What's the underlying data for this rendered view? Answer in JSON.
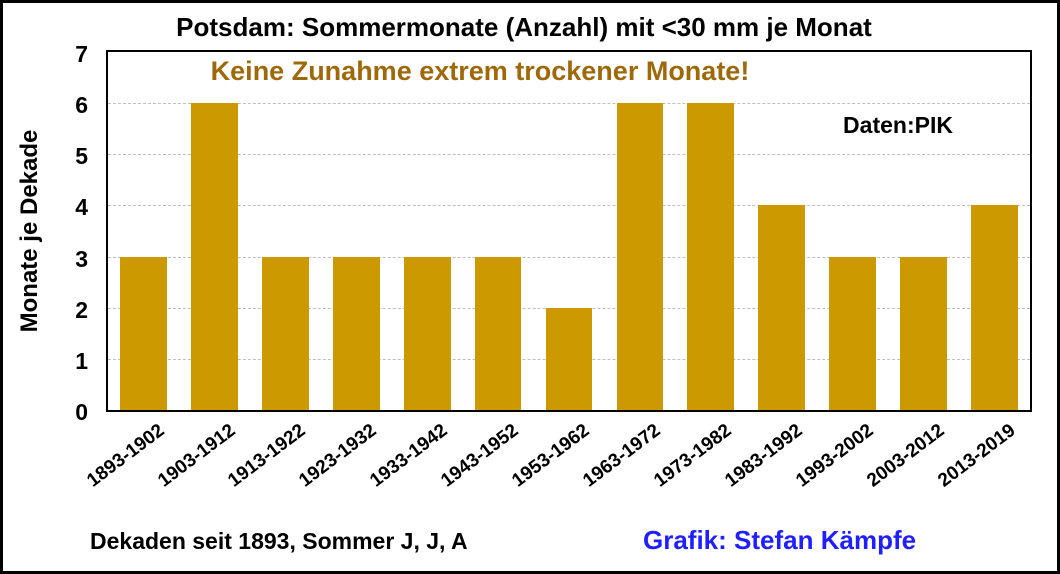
{
  "window": {
    "background": "#FFFFFF",
    "border_color": "#000000"
  },
  "chart_data": {
    "type": "bar",
    "title": "Potsdam: Sommermonate (Anzahl) mit <30 mm je Monat",
    "annotation": "Keine Zunahme extrem trockener Monate!",
    "source_label": "Daten:PIK",
    "credit_label": "Grafik: Stefan Kämpfe",
    "ylabel": "Monate je Dekade",
    "xlabel": "Dekaden seit 1893, Sommer J, J, A",
    "categories": [
      "1893-1902",
      "1903-1912",
      "1913-1922",
      "1923-1932",
      "1933-1942",
      "1943-1952",
      "1953-1962",
      "1963-1972",
      "1973-1982",
      "1983-1992",
      "1993-2002",
      "2003-2012",
      "2013-2019"
    ],
    "values": [
      3,
      6,
      3,
      3,
      3,
      3,
      2,
      6,
      6,
      4,
      3,
      3,
      4
    ],
    "ylim": [
      0,
      7
    ],
    "yticks": [
      0,
      1,
      2,
      3,
      4,
      5,
      6,
      7
    ],
    "grid": "horizontal-dashed",
    "legend": "none",
    "colors": {
      "bar": "#CC9900",
      "annotation": "#9E690B",
      "credit": "#1F1FFF",
      "title": "#000000",
      "grid": "#BFBFBF",
      "axis_border": "#000000"
    }
  }
}
